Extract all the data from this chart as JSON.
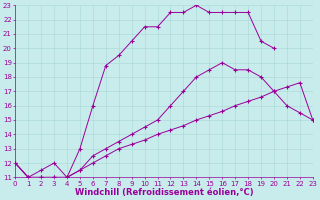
{
  "xlabel": "Windchill (Refroidissement éolien,°C)",
  "ylim": [
    11,
    23
  ],
  "xlim": [
    0,
    23
  ],
  "bg_color": "#c8ecec",
  "line_color": "#990099",
  "grid_color": "#a8d8d8",
  "curve1_x": [
    0,
    1,
    2,
    3,
    4,
    5,
    6,
    7,
    8,
    9,
    10,
    11,
    12,
    13,
    14,
    15,
    16,
    17,
    18,
    19,
    20,
    21,
    22,
    23
  ],
  "curve1_y": [
    12,
    11,
    11,
    11,
    11,
    11.5,
    12,
    12.5,
    13,
    13.3,
    13.6,
    14,
    14.3,
    14.6,
    15,
    15.3,
    15.6,
    16,
    16.3,
    16.6,
    17,
    17.3,
    17.6,
    15
  ],
  "curve2_x": [
    0,
    1,
    2,
    3,
    4,
    5,
    6,
    7,
    8,
    9,
    10,
    11,
    12,
    13,
    14,
    15,
    16,
    17,
    18,
    19,
    20,
    21,
    22,
    23
  ],
  "curve2_y": [
    12,
    11,
    11,
    11,
    11,
    11.5,
    12.5,
    13,
    13.5,
    14,
    14.5,
    15,
    16,
    17,
    18,
    18.5,
    19,
    18.5,
    18.5,
    18,
    17,
    16,
    15.5,
    15
  ],
  "curve3_x": [
    0,
    1,
    2,
    3,
    4,
    5,
    6,
    7,
    8,
    9,
    10,
    11,
    12,
    13,
    14,
    15,
    16,
    17,
    18,
    19,
    20
  ],
  "curve3_y": [
    12,
    11,
    11.5,
    12,
    11,
    13,
    16,
    18.8,
    19.5,
    20.5,
    21.5,
    21.5,
    22.5,
    22.5,
    23,
    22.5,
    22.5,
    22.5,
    22.5,
    20.5,
    20
  ],
  "yticks": [
    11,
    12,
    13,
    14,
    15,
    16,
    17,
    18,
    19,
    20,
    21,
    22,
    23
  ],
  "xticks": [
    0,
    1,
    2,
    3,
    4,
    5,
    6,
    7,
    8,
    9,
    10,
    11,
    12,
    13,
    14,
    15,
    16,
    17,
    18,
    19,
    20,
    21,
    22,
    23
  ],
  "tick_fontsize": 5.0,
  "label_fontsize": 6.0
}
